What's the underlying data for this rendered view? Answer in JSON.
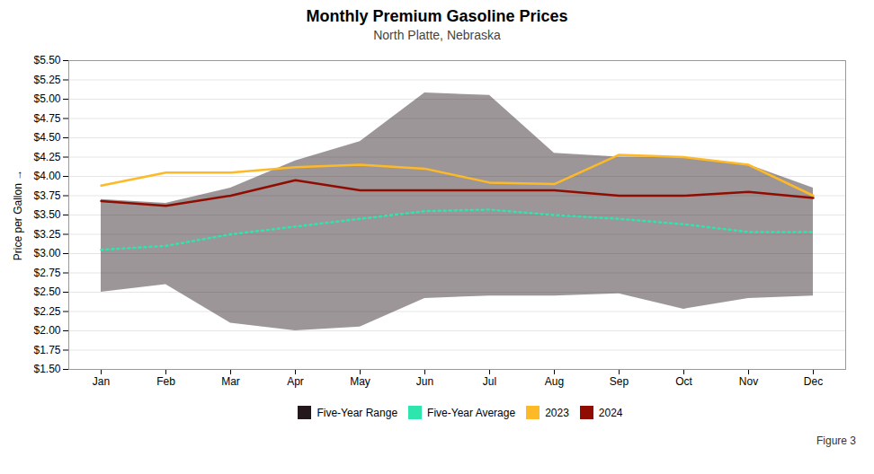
{
  "chart_data": {
    "type": "line",
    "title": "Monthly Premium Gasoline Prices",
    "subtitle": "North Platte, Nebraska",
    "ylabel": "Price per Gallon",
    "annotations": [
      "Figure 3"
    ],
    "categories": [
      "Jan",
      "Feb",
      "Mar",
      "Apr",
      "May",
      "Jun",
      "Jul",
      "Aug",
      "Sep",
      "Oct",
      "Nov",
      "Dec"
    ],
    "series": [
      {
        "name": "Five-Year Range",
        "type": "area",
        "lower": [
          2.5,
          2.6,
          2.1,
          2.0,
          2.05,
          2.42,
          2.45,
          2.45,
          2.48,
          2.28,
          2.42,
          2.45
        ],
        "upper": [
          3.7,
          3.65,
          3.85,
          4.2,
          4.45,
          5.08,
          5.05,
          4.3,
          4.25,
          4.25,
          4.15,
          3.85
        ]
      },
      {
        "name": "Five-Year Average",
        "type": "line",
        "line_style": "dotted",
        "values": [
          3.05,
          3.1,
          3.25,
          3.35,
          3.45,
          3.55,
          3.57,
          3.5,
          3.45,
          3.38,
          3.28,
          3.28
        ]
      },
      {
        "name": "2023",
        "type": "line",
        "line_style": "solid",
        "values": [
          3.88,
          4.05,
          4.05,
          4.12,
          4.15,
          4.1,
          3.92,
          3.9,
          4.28,
          4.25,
          4.15,
          3.75
        ]
      },
      {
        "name": "2024",
        "type": "line",
        "line_style": "solid",
        "values": [
          3.68,
          3.62,
          3.75,
          3.95,
          3.82,
          3.82,
          3.82,
          3.82,
          3.75,
          3.75,
          3.8,
          3.72
        ]
      }
    ],
    "ylim": [
      1.5,
      5.5
    ],
    "yticks": [
      {
        "value": 1.5,
        "label": "$1.50"
      },
      {
        "value": 1.75,
        "label": "$1.75"
      },
      {
        "value": 2.0,
        "label": "$2.00"
      },
      {
        "value": 2.25,
        "label": "$2.25"
      },
      {
        "value": 2.5,
        "label": "$2.50"
      },
      {
        "value": 2.75,
        "label": "$2.75"
      },
      {
        "value": 3.0,
        "label": "$3.00"
      },
      {
        "value": 3.25,
        "label": "$3.25"
      },
      {
        "value": 3.5,
        "label": "$3.50"
      },
      {
        "value": 3.75,
        "label": "$3.75"
      },
      {
        "value": 4.0,
        "label": "$4.00"
      },
      {
        "value": 4.25,
        "label": "$4.25"
      },
      {
        "value": 4.5,
        "label": "$4.50"
      },
      {
        "value": 4.75,
        "label": "$4.75"
      },
      {
        "value": 5.0,
        "label": "$5.00"
      },
      {
        "value": 5.25,
        "label": "$5.25"
      },
      {
        "value": 5.5,
        "label": "$5.50"
      }
    ],
    "grid": true,
    "legend": "bottom"
  }
}
